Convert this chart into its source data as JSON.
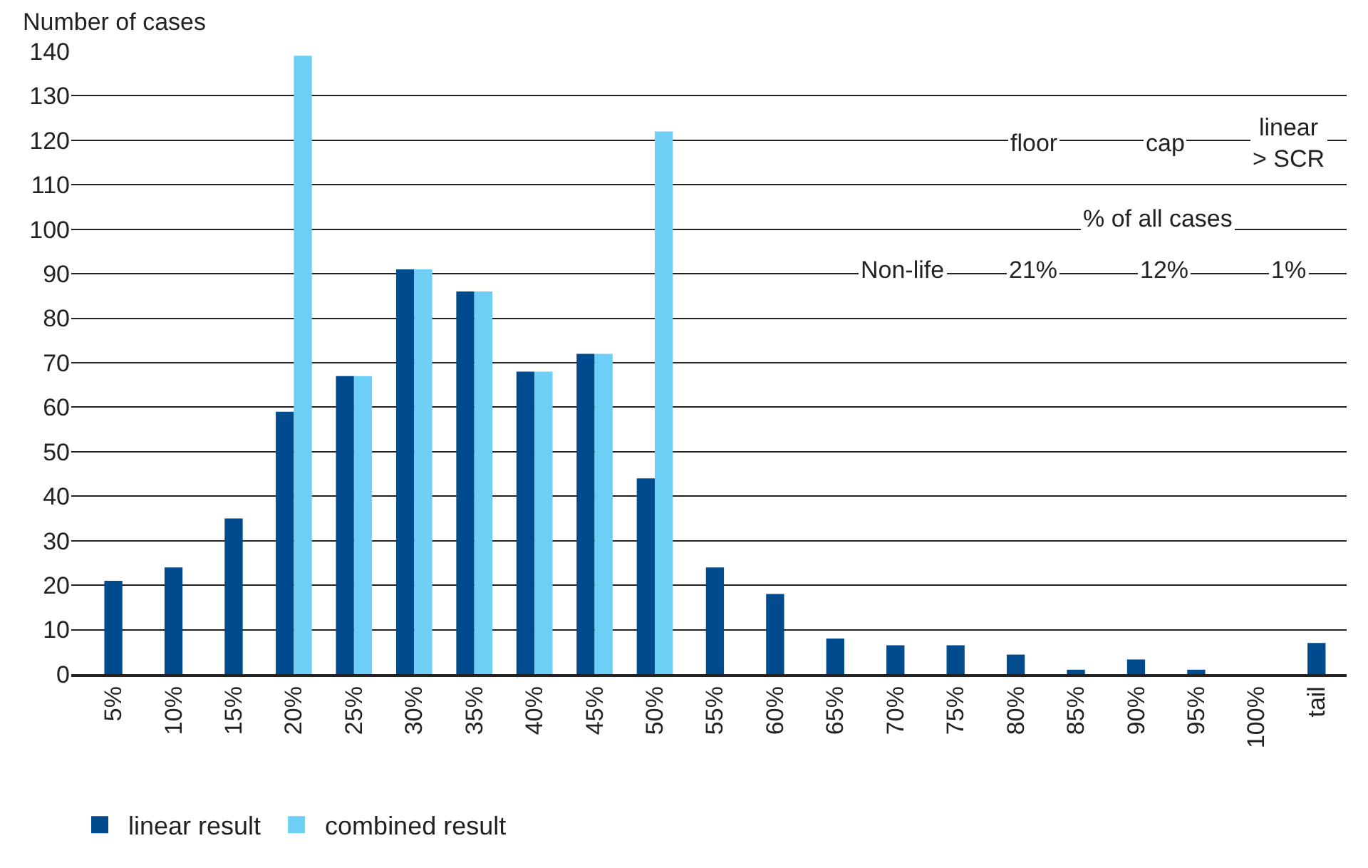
{
  "chart_data": {
    "type": "bar",
    "ylabel": "Number of cases",
    "categories": [
      "5%",
      "10%",
      "15%",
      "20%",
      "25%",
      "30%",
      "35%",
      "40%",
      "45%",
      "50%",
      "55%",
      "60%",
      "65%",
      "70%",
      "75%",
      "80%",
      "85%",
      "90%",
      "95%",
      "100%",
      "tail"
    ],
    "series": [
      {
        "name": "linear result",
        "color": "#004b8d",
        "values": [
          21,
          24,
          35,
          59,
          67,
          91,
          86,
          68,
          72,
          44,
          24,
          18,
          8,
          6.5,
          6.5,
          4.4,
          1,
          3.3,
          1,
          0,
          7
        ]
      },
      {
        "name": "combined result",
        "color": "#6dcff6",
        "values": [
          null,
          null,
          null,
          139,
          67,
          91,
          86,
          68,
          72,
          122,
          null,
          null,
          null,
          null,
          null,
          null,
          null,
          null,
          null,
          null,
          null
        ]
      }
    ],
    "ylim": [
      0,
      140
    ],
    "yticks": [
      0,
      10,
      20,
      30,
      40,
      50,
      60,
      70,
      80,
      90,
      100,
      110,
      120,
      130,
      140
    ],
    "grid": "y",
    "legend": "bottom",
    "annotations": [
      "floor",
      "cap",
      "linear\n> SCR",
      "% of all cases",
      "Non-life",
      "21%",
      "12%",
      "1%"
    ]
  }
}
